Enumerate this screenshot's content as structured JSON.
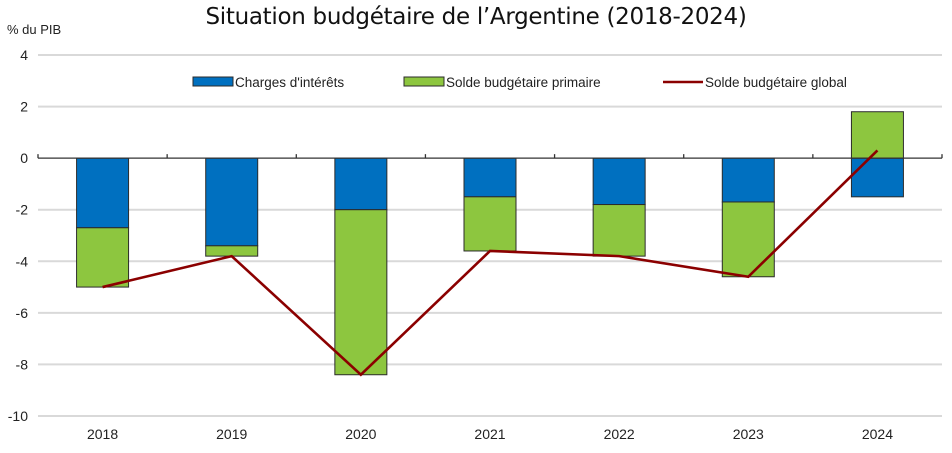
{
  "chart_data": {
    "type": "bar",
    "stacked": true,
    "title": "Situation budgétaire de l’Argentine (2018-2024)",
    "ylabel": "% du PIB",
    "xlabel": "",
    "ylim": [
      -10,
      4
    ],
    "yticks": [
      4,
      2,
      0,
      -2,
      -4,
      -6,
      -8,
      -10
    ],
    "grid": true,
    "legend_position": "top",
    "categories": [
      "2018",
      "2019",
      "2020",
      "2021",
      "2022",
      "2023",
      "2024"
    ],
    "series": [
      {
        "name": "Charges d'intérêts",
        "type": "bar",
        "color": "#0070C0",
        "values": [
          -2.7,
          -3.4,
          -2.0,
          -1.5,
          -1.8,
          -1.7,
          -1.5
        ]
      },
      {
        "name": "Solde budgétaire primaire",
        "type": "bar",
        "color": "#8DC63F",
        "values": [
          -2.3,
          -0.4,
          -6.4,
          -2.1,
          -2.0,
          -2.9,
          1.8
        ]
      },
      {
        "name": "Solde budgétaire global",
        "type": "line",
        "color": "#8B0000",
        "values": [
          -5.0,
          -3.8,
          -8.4,
          -3.6,
          -3.8,
          -4.6,
          0.3
        ]
      }
    ]
  }
}
